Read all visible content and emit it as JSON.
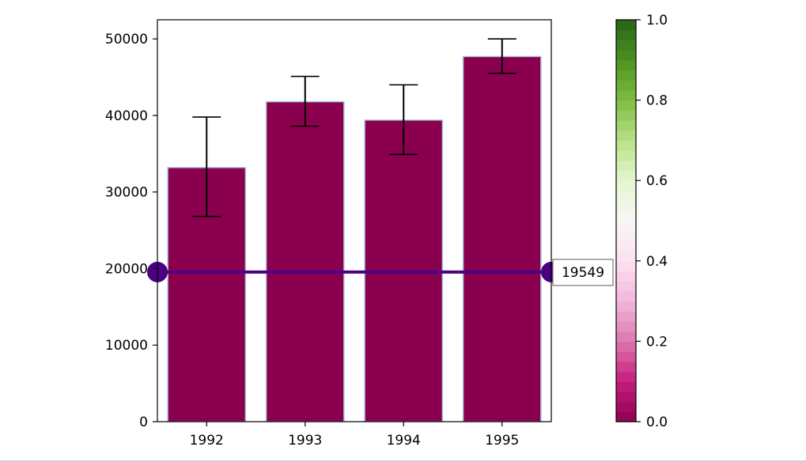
{
  "chart_data": {
    "type": "bar",
    "categories": [
      "1992",
      "1993",
      "1994",
      "1995"
    ],
    "values": [
      33200,
      41800,
      39400,
      47700
    ],
    "error_low": [
      26800,
      38600,
      34900,
      45500
    ],
    "error_high": [
      39800,
      45100,
      44000,
      50000
    ],
    "ylim": [
      0,
      52500
    ],
    "yticks": [
      0,
      10000,
      20000,
      30000,
      40000,
      50000
    ],
    "title": "",
    "xlabel": "",
    "ylabel": "",
    "bar_color": "#8b004e",
    "bar_edge_color": "#a9c8e8",
    "reference_line": {
      "value": 19549,
      "label": "19549",
      "color": "#4b0082"
    },
    "colorbar": {
      "colormap": "PiYG",
      "range": [
        0.0,
        1.0
      ],
      "ticks": [
        "0.0",
        "0.2",
        "0.4",
        "0.6",
        "0.8",
        "1.0"
      ],
      "tick_values": [
        0.0,
        0.2,
        0.4,
        0.6,
        0.8,
        1.0
      ],
      "levels": 40
    },
    "grid": false
  }
}
